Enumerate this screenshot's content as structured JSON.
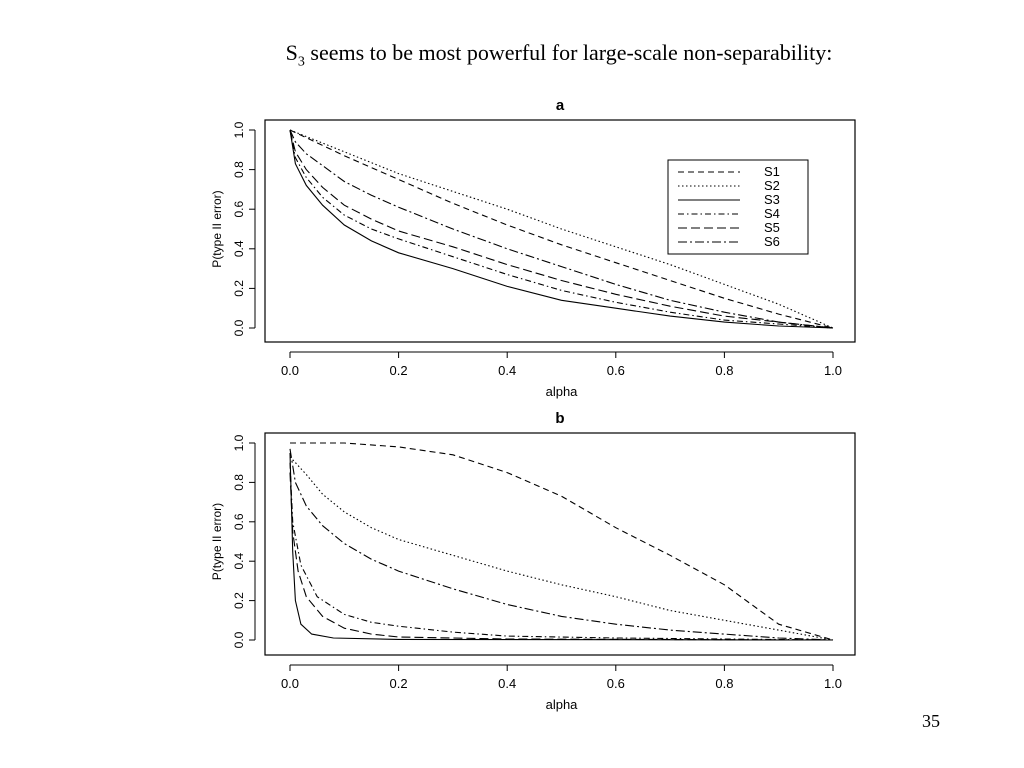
{
  "slide": {
    "title_main": "S",
    "title_subscript": "3",
    "title_rest": " seems to be most powerful for large-scale non-separability:",
    "page_number": "35"
  },
  "chart_data": [
    {
      "type": "line",
      "title": "a",
      "xlabel": "alpha",
      "ylabel": "P(type II error)",
      "xlim": [
        0,
        1
      ],
      "ylim": [
        0,
        1
      ],
      "xticks": [
        "0.0",
        "0.2",
        "0.4",
        "0.6",
        "0.8",
        "1.0"
      ],
      "yticks": [
        "0.0",
        "0.2",
        "0.4",
        "0.6",
        "0.8",
        "1.0"
      ],
      "grid": false,
      "legend": "top-right",
      "series": [
        {
          "name": "S1",
          "dash": "6,4",
          "points": [
            [
              0,
              1
            ],
            [
              0.1,
              0.87
            ],
            [
              0.2,
              0.75
            ],
            [
              0.3,
              0.63
            ],
            [
              0.4,
              0.52
            ],
            [
              0.5,
              0.42
            ],
            [
              0.6,
              0.33
            ],
            [
              0.7,
              0.24
            ],
            [
              0.8,
              0.15
            ],
            [
              0.9,
              0.07
            ],
            [
              1,
              0
            ]
          ]
        },
        {
          "name": "S2",
          "dash": "1.5,2.5",
          "points": [
            [
              0,
              1
            ],
            [
              0.1,
              0.89
            ],
            [
              0.2,
              0.78
            ],
            [
              0.3,
              0.69
            ],
            [
              0.4,
              0.6
            ],
            [
              0.5,
              0.5
            ],
            [
              0.6,
              0.41
            ],
            [
              0.7,
              0.32
            ],
            [
              0.8,
              0.22
            ],
            [
              0.9,
              0.12
            ],
            [
              1,
              0
            ]
          ]
        },
        {
          "name": "S3",
          "dash": "",
          "points": [
            [
              0,
              1
            ],
            [
              0.01,
              0.83
            ],
            [
              0.03,
              0.72
            ],
            [
              0.06,
              0.62
            ],
            [
              0.1,
              0.52
            ],
            [
              0.15,
              0.44
            ],
            [
              0.2,
              0.38
            ],
            [
              0.3,
              0.3
            ],
            [
              0.4,
              0.21
            ],
            [
              0.5,
              0.14
            ],
            [
              0.6,
              0.1
            ],
            [
              0.7,
              0.06
            ],
            [
              0.8,
              0.03
            ],
            [
              0.9,
              0.01
            ],
            [
              1,
              0
            ]
          ]
        },
        {
          "name": "S4",
          "dash": "6,3,1.5,3",
          "points": [
            [
              0,
              1
            ],
            [
              0.01,
              0.86
            ],
            [
              0.03,
              0.76
            ],
            [
              0.06,
              0.66
            ],
            [
              0.1,
              0.57
            ],
            [
              0.15,
              0.5
            ],
            [
              0.2,
              0.45
            ],
            [
              0.3,
              0.36
            ],
            [
              0.4,
              0.27
            ],
            [
              0.5,
              0.19
            ],
            [
              0.6,
              0.13
            ],
            [
              0.7,
              0.08
            ],
            [
              0.8,
              0.04
            ],
            [
              0.9,
              0.02
            ],
            [
              1,
              0
            ]
          ]
        },
        {
          "name": "S5",
          "dash": "9,4",
          "points": [
            [
              0,
              1
            ],
            [
              0.01,
              0.89
            ],
            [
              0.03,
              0.8
            ],
            [
              0.06,
              0.71
            ],
            [
              0.1,
              0.62
            ],
            [
              0.15,
              0.55
            ],
            [
              0.2,
              0.49
            ],
            [
              0.3,
              0.41
            ],
            [
              0.4,
              0.32
            ],
            [
              0.5,
              0.24
            ],
            [
              0.6,
              0.17
            ],
            [
              0.7,
              0.11
            ],
            [
              0.8,
              0.06
            ],
            [
              0.9,
              0.03
            ],
            [
              1,
              0
            ]
          ]
        },
        {
          "name": "S6",
          "dash": "9,3,2,3",
          "points": [
            [
              0,
              1
            ],
            [
              0.01,
              0.94
            ],
            [
              0.03,
              0.88
            ],
            [
              0.06,
              0.82
            ],
            [
              0.1,
              0.74
            ],
            [
              0.15,
              0.67
            ],
            [
              0.2,
              0.61
            ],
            [
              0.3,
              0.5
            ],
            [
              0.4,
              0.4
            ],
            [
              0.5,
              0.31
            ],
            [
              0.6,
              0.22
            ],
            [
              0.7,
              0.14
            ],
            [
              0.8,
              0.08
            ],
            [
              0.9,
              0.03
            ],
            [
              1,
              0
            ]
          ]
        }
      ]
    },
    {
      "type": "line",
      "title": "b",
      "xlabel": "alpha",
      "ylabel": "P(type II error)",
      "xlim": [
        0,
        1
      ],
      "ylim": [
        0,
        1
      ],
      "xticks": [
        "0.0",
        "0.2",
        "0.4",
        "0.6",
        "0.8",
        "1.0"
      ],
      "yticks": [
        "0.0",
        "0.2",
        "0.4",
        "0.6",
        "0.8",
        "1.0"
      ],
      "grid": false,
      "legend": "none",
      "series": [
        {
          "name": "S1",
          "dash": "6,4",
          "points": [
            [
              0,
              1
            ],
            [
              0.1,
              1
            ],
            [
              0.2,
              0.98
            ],
            [
              0.3,
              0.94
            ],
            [
              0.4,
              0.85
            ],
            [
              0.5,
              0.73
            ],
            [
              0.6,
              0.57
            ],
            [
              0.7,
              0.43
            ],
            [
              0.8,
              0.28
            ],
            [
              0.9,
              0.08
            ],
            [
              1,
              0
            ]
          ]
        },
        {
          "name": "S2",
          "dash": "1.5,2.5",
          "points": [
            [
              0,
              0.93
            ],
            [
              0.03,
              0.84
            ],
            [
              0.06,
              0.74
            ],
            [
              0.1,
              0.65
            ],
            [
              0.15,
              0.57
            ],
            [
              0.2,
              0.51
            ],
            [
              0.3,
              0.43
            ],
            [
              0.4,
              0.35
            ],
            [
              0.5,
              0.28
            ],
            [
              0.6,
              0.22
            ],
            [
              0.7,
              0.15
            ],
            [
              0.8,
              0.1
            ],
            [
              0.9,
              0.05
            ],
            [
              1,
              0
            ]
          ]
        },
        {
          "name": "S3",
          "dash": "",
          "points": [
            [
              0,
              0.95
            ],
            [
              0.005,
              0.45
            ],
            [
              0.01,
              0.2
            ],
            [
              0.02,
              0.08
            ],
            [
              0.04,
              0.03
            ],
            [
              0.08,
              0.01
            ],
            [
              0.2,
              0.003
            ],
            [
              1,
              0
            ]
          ]
        },
        {
          "name": "S4",
          "dash": "6,3,1.5,3",
          "points": [
            [
              0,
              0.9
            ],
            [
              0.005,
              0.6
            ],
            [
              0.02,
              0.38
            ],
            [
              0.05,
              0.22
            ],
            [
              0.1,
              0.13
            ],
            [
              0.15,
              0.09
            ],
            [
              0.2,
              0.07
            ],
            [
              0.3,
              0.04
            ],
            [
              0.4,
              0.02
            ],
            [
              0.6,
              0.01
            ],
            [
              1,
              0
            ]
          ]
        },
        {
          "name": "S5",
          "dash": "9,4",
          "points": [
            [
              0,
              0.85
            ],
            [
              0.005,
              0.55
            ],
            [
              0.015,
              0.35
            ],
            [
              0.03,
              0.22
            ],
            [
              0.06,
              0.12
            ],
            [
              0.1,
              0.06
            ],
            [
              0.15,
              0.03
            ],
            [
              0.2,
              0.015
            ],
            [
              0.4,
              0.005
            ],
            [
              1,
              0
            ]
          ]
        },
        {
          "name": "S6",
          "dash": "9,3,2,3",
          "points": [
            [
              0,
              0.97
            ],
            [
              0.01,
              0.8
            ],
            [
              0.03,
              0.68
            ],
            [
              0.06,
              0.58
            ],
            [
              0.1,
              0.49
            ],
            [
              0.15,
              0.41
            ],
            [
              0.2,
              0.35
            ],
            [
              0.3,
              0.26
            ],
            [
              0.4,
              0.18
            ],
            [
              0.5,
              0.12
            ],
            [
              0.6,
              0.08
            ],
            [
              0.7,
              0.05
            ],
            [
              0.8,
              0.03
            ],
            [
              0.9,
              0.01
            ],
            [
              1,
              0
            ]
          ]
        }
      ]
    }
  ]
}
